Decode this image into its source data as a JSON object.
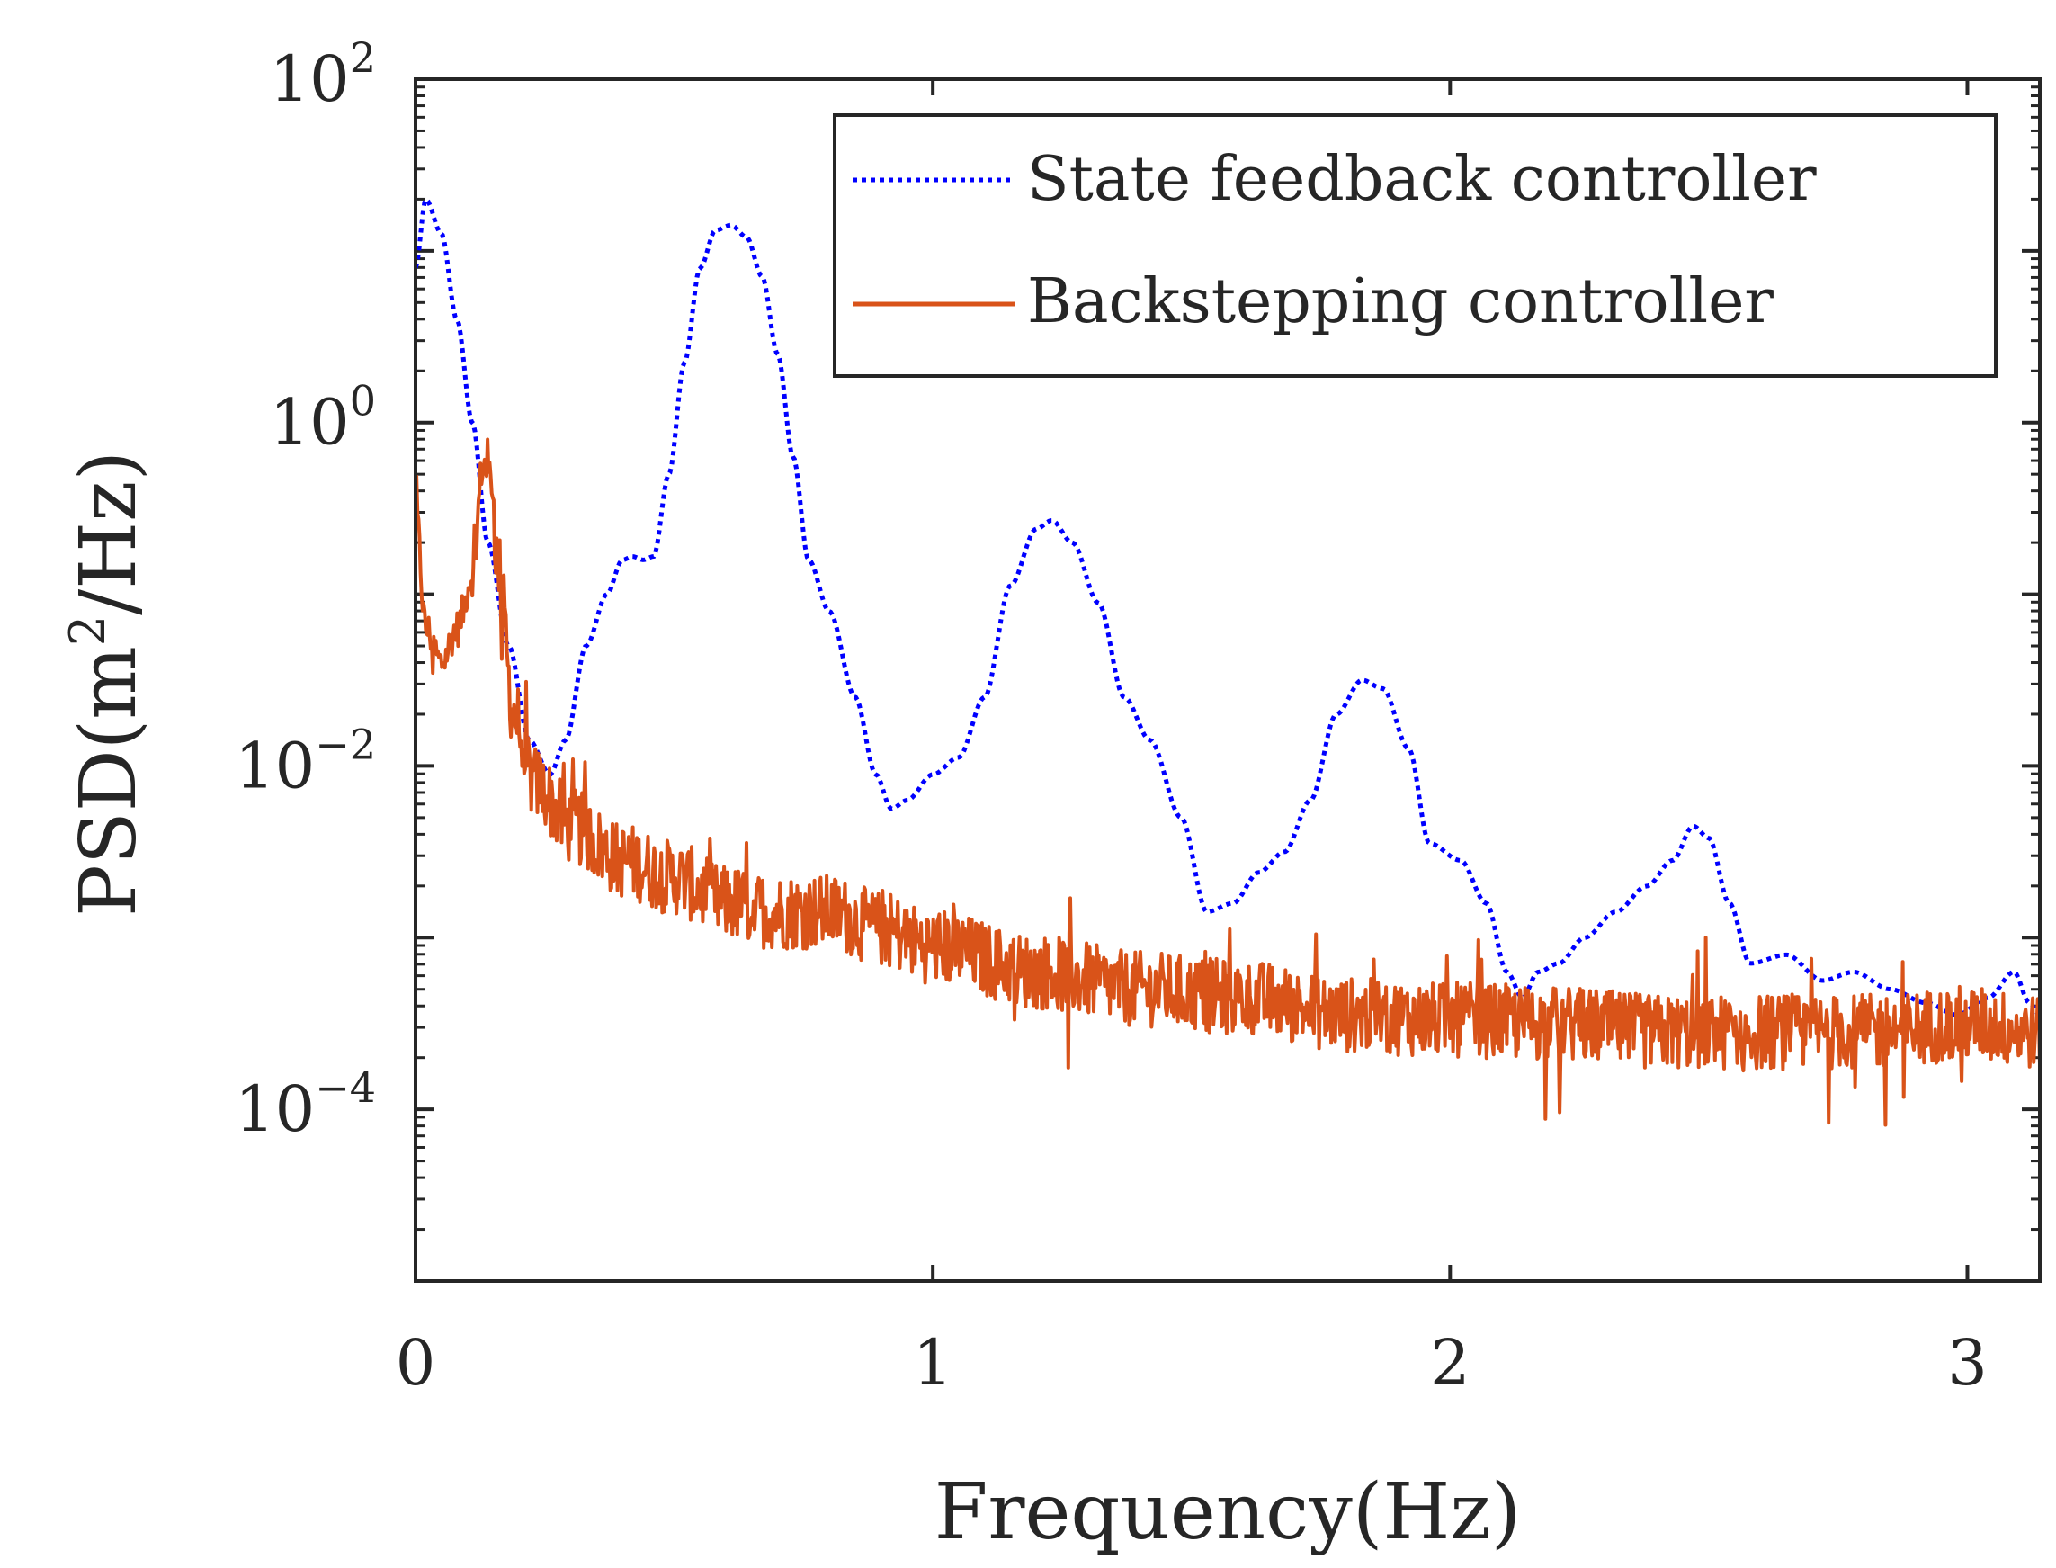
{
  "chart_data": {
    "type": "line",
    "title": "",
    "xlabel": "Frequency(Hz)",
    "ylabel_prefix": "PSD(m",
    "ylabel_sup": "2",
    "ylabel_suffix": "/Hz)",
    "xlim": [
      0,
      3.14
    ],
    "ylim_log10": [
      -5,
      2
    ],
    "y_scale": "log",
    "x_ticks": [
      {
        "value": 0,
        "label": "0"
      },
      {
        "value": 1,
        "label": "1"
      },
      {
        "value": 2,
        "label": "2"
      },
      {
        "value": 3,
        "label": "3"
      }
    ],
    "y_ticks": [
      {
        "exp": 2,
        "base": "10",
        "sup": "2"
      },
      {
        "exp": 0,
        "base": "10",
        "sup": "0"
      },
      {
        "exp": -2,
        "base": "10",
        "sup": "−2"
      },
      {
        "exp": -4,
        "base": "10",
        "sup": "−4"
      }
    ],
    "legend_position": "top-right",
    "series": [
      {
        "name": "State feedback controller",
        "style": "dotted",
        "color": "#0000ff",
        "points": [
          [
            0.0,
            0.9
          ],
          [
            0.02,
            1.3
          ],
          [
            0.05,
            1.1
          ],
          [
            0.08,
            0.6
          ],
          [
            0.11,
            0.0
          ],
          [
            0.14,
            -0.7
          ],
          [
            0.18,
            -1.3
          ],
          [
            0.22,
            -1.85
          ],
          [
            0.26,
            -2.05
          ],
          [
            0.29,
            -1.85
          ],
          [
            0.33,
            -1.3
          ],
          [
            0.37,
            -1.0
          ],
          [
            0.4,
            -0.8
          ],
          [
            0.42,
            -0.78
          ],
          [
            0.44,
            -0.8
          ],
          [
            0.46,
            -0.78
          ],
          [
            0.49,
            -0.3
          ],
          [
            0.52,
            0.35
          ],
          [
            0.55,
            0.9
          ],
          [
            0.58,
            1.12
          ],
          [
            0.61,
            1.15
          ],
          [
            0.64,
            1.08
          ],
          [
            0.67,
            0.85
          ],
          [
            0.7,
            0.4
          ],
          [
            0.73,
            -0.2
          ],
          [
            0.76,
            -0.8
          ],
          [
            0.8,
            -1.1
          ],
          [
            0.85,
            -1.6
          ],
          [
            0.89,
            -2.05
          ],
          [
            0.92,
            -2.25
          ],
          [
            0.95,
            -2.2
          ],
          [
            1.0,
            -2.05
          ],
          [
            1.05,
            -1.95
          ],
          [
            1.1,
            -1.6
          ],
          [
            1.15,
            -0.95
          ],
          [
            1.2,
            -0.62
          ],
          [
            1.23,
            -0.57
          ],
          [
            1.27,
            -0.7
          ],
          [
            1.32,
            -1.05
          ],
          [
            1.37,
            -1.6
          ],
          [
            1.42,
            -1.85
          ],
          [
            1.48,
            -2.3
          ],
          [
            1.53,
            -2.85
          ],
          [
            1.58,
            -2.8
          ],
          [
            1.63,
            -2.62
          ],
          [
            1.68,
            -2.5
          ],
          [
            1.73,
            -2.2
          ],
          [
            1.78,
            -1.7
          ],
          [
            1.83,
            -1.5
          ],
          [
            1.87,
            -1.55
          ],
          [
            1.92,
            -1.9
          ],
          [
            1.96,
            -2.45
          ],
          [
            2.02,
            -2.55
          ],
          [
            2.07,
            -2.8
          ],
          [
            2.11,
            -3.2
          ],
          [
            2.14,
            -3.35
          ],
          [
            2.17,
            -3.2
          ],
          [
            2.21,
            -3.15
          ],
          [
            2.26,
            -3.0
          ],
          [
            2.32,
            -2.85
          ],
          [
            2.38,
            -2.7
          ],
          [
            2.43,
            -2.55
          ],
          [
            2.47,
            -2.35
          ],
          [
            2.5,
            -2.42
          ],
          [
            2.54,
            -2.8
          ],
          [
            2.58,
            -3.15
          ],
          [
            2.65,
            -3.1
          ],
          [
            2.72,
            -3.25
          ],
          [
            2.78,
            -3.2
          ],
          [
            2.85,
            -3.3
          ],
          [
            2.92,
            -3.38
          ],
          [
            2.98,
            -3.45
          ],
          [
            3.04,
            -3.35
          ],
          [
            3.09,
            -3.2
          ],
          [
            3.12,
            -3.38
          ],
          [
            3.14,
            -3.45
          ]
        ]
      },
      {
        "name": "Backstepping controller",
        "style": "solid",
        "color": "#d95319",
        "baseline": [
          [
            0.0,
            -0.5
          ],
          [
            0.02,
            -1.2
          ],
          [
            0.05,
            -1.4
          ],
          [
            0.08,
            -1.2
          ],
          [
            0.11,
            -0.9
          ],
          [
            0.13,
            -0.25
          ],
          [
            0.145,
            -0.3
          ],
          [
            0.16,
            -0.85
          ],
          [
            0.19,
            -1.7
          ],
          [
            0.23,
            -2.1
          ],
          [
            0.3,
            -2.35
          ],
          [
            0.4,
            -2.55
          ],
          [
            0.5,
            -2.65
          ],
          [
            0.6,
            -2.8
          ],
          [
            0.7,
            -2.85
          ],
          [
            0.8,
            -2.85
          ],
          [
            0.9,
            -2.95
          ],
          [
            1.0,
            -3.05
          ],
          [
            1.2,
            -3.2
          ],
          [
            1.4,
            -3.3
          ],
          [
            1.6,
            -3.35
          ],
          [
            1.8,
            -3.45
          ],
          [
            2.0,
            -3.48
          ],
          [
            2.2,
            -3.5
          ],
          [
            2.4,
            -3.55
          ],
          [
            2.6,
            -3.55
          ],
          [
            2.8,
            -3.55
          ],
          [
            3.0,
            -3.5
          ],
          [
            3.14,
            -3.55
          ]
        ],
        "noise_amplitude_log10": 0.22
      }
    ]
  }
}
